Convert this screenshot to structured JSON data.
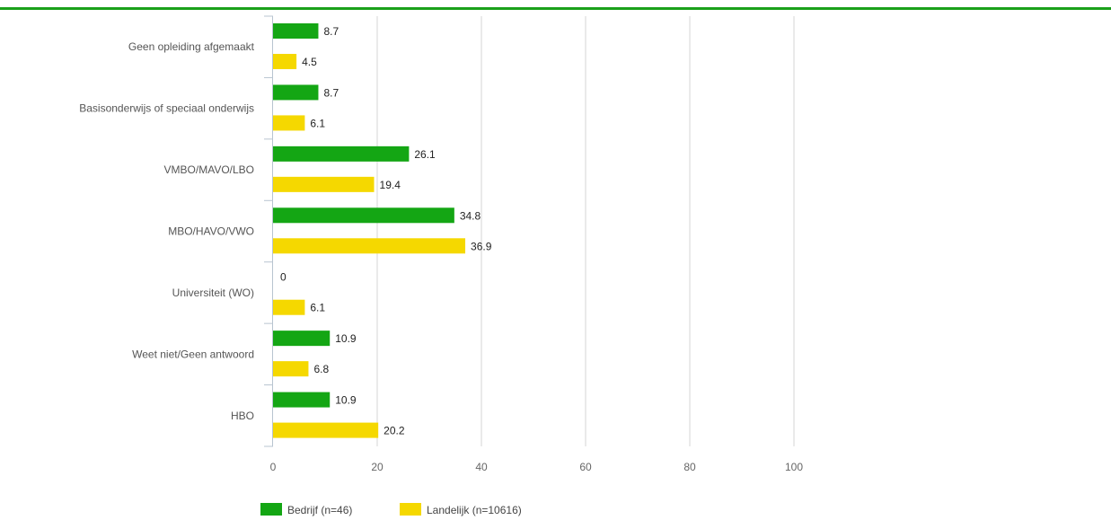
{
  "chart_data": {
    "type": "bar",
    "orientation": "horizontal",
    "categories": [
      "Geen opleiding afgemaakt",
      "Basisonderwijs of speciaal onderwijs",
      "VMBO/MAVO/LBO",
      "MBO/HAVO/VWO",
      "Universiteit (WO)",
      "Weet niet/Geen antwoord",
      "HBO"
    ],
    "series": [
      {
        "name": "Bedrijf (n=46)",
        "color": "#14a614",
        "values": [
          8.7,
          8.7,
          26.1,
          34.8,
          0,
          10.9,
          10.9
        ]
      },
      {
        "name": "Landelijk (n=10616)",
        "color": "#f5d800",
        "values": [
          4.5,
          6.1,
          19.4,
          36.9,
          6.1,
          6.8,
          20.2
        ]
      }
    ],
    "xlim": [
      0,
      100
    ],
    "xticks": [
      0,
      20,
      40,
      60,
      80,
      100
    ],
    "grid": "vertical",
    "legend_position": "bottom-left",
    "data_labels": true
  }
}
